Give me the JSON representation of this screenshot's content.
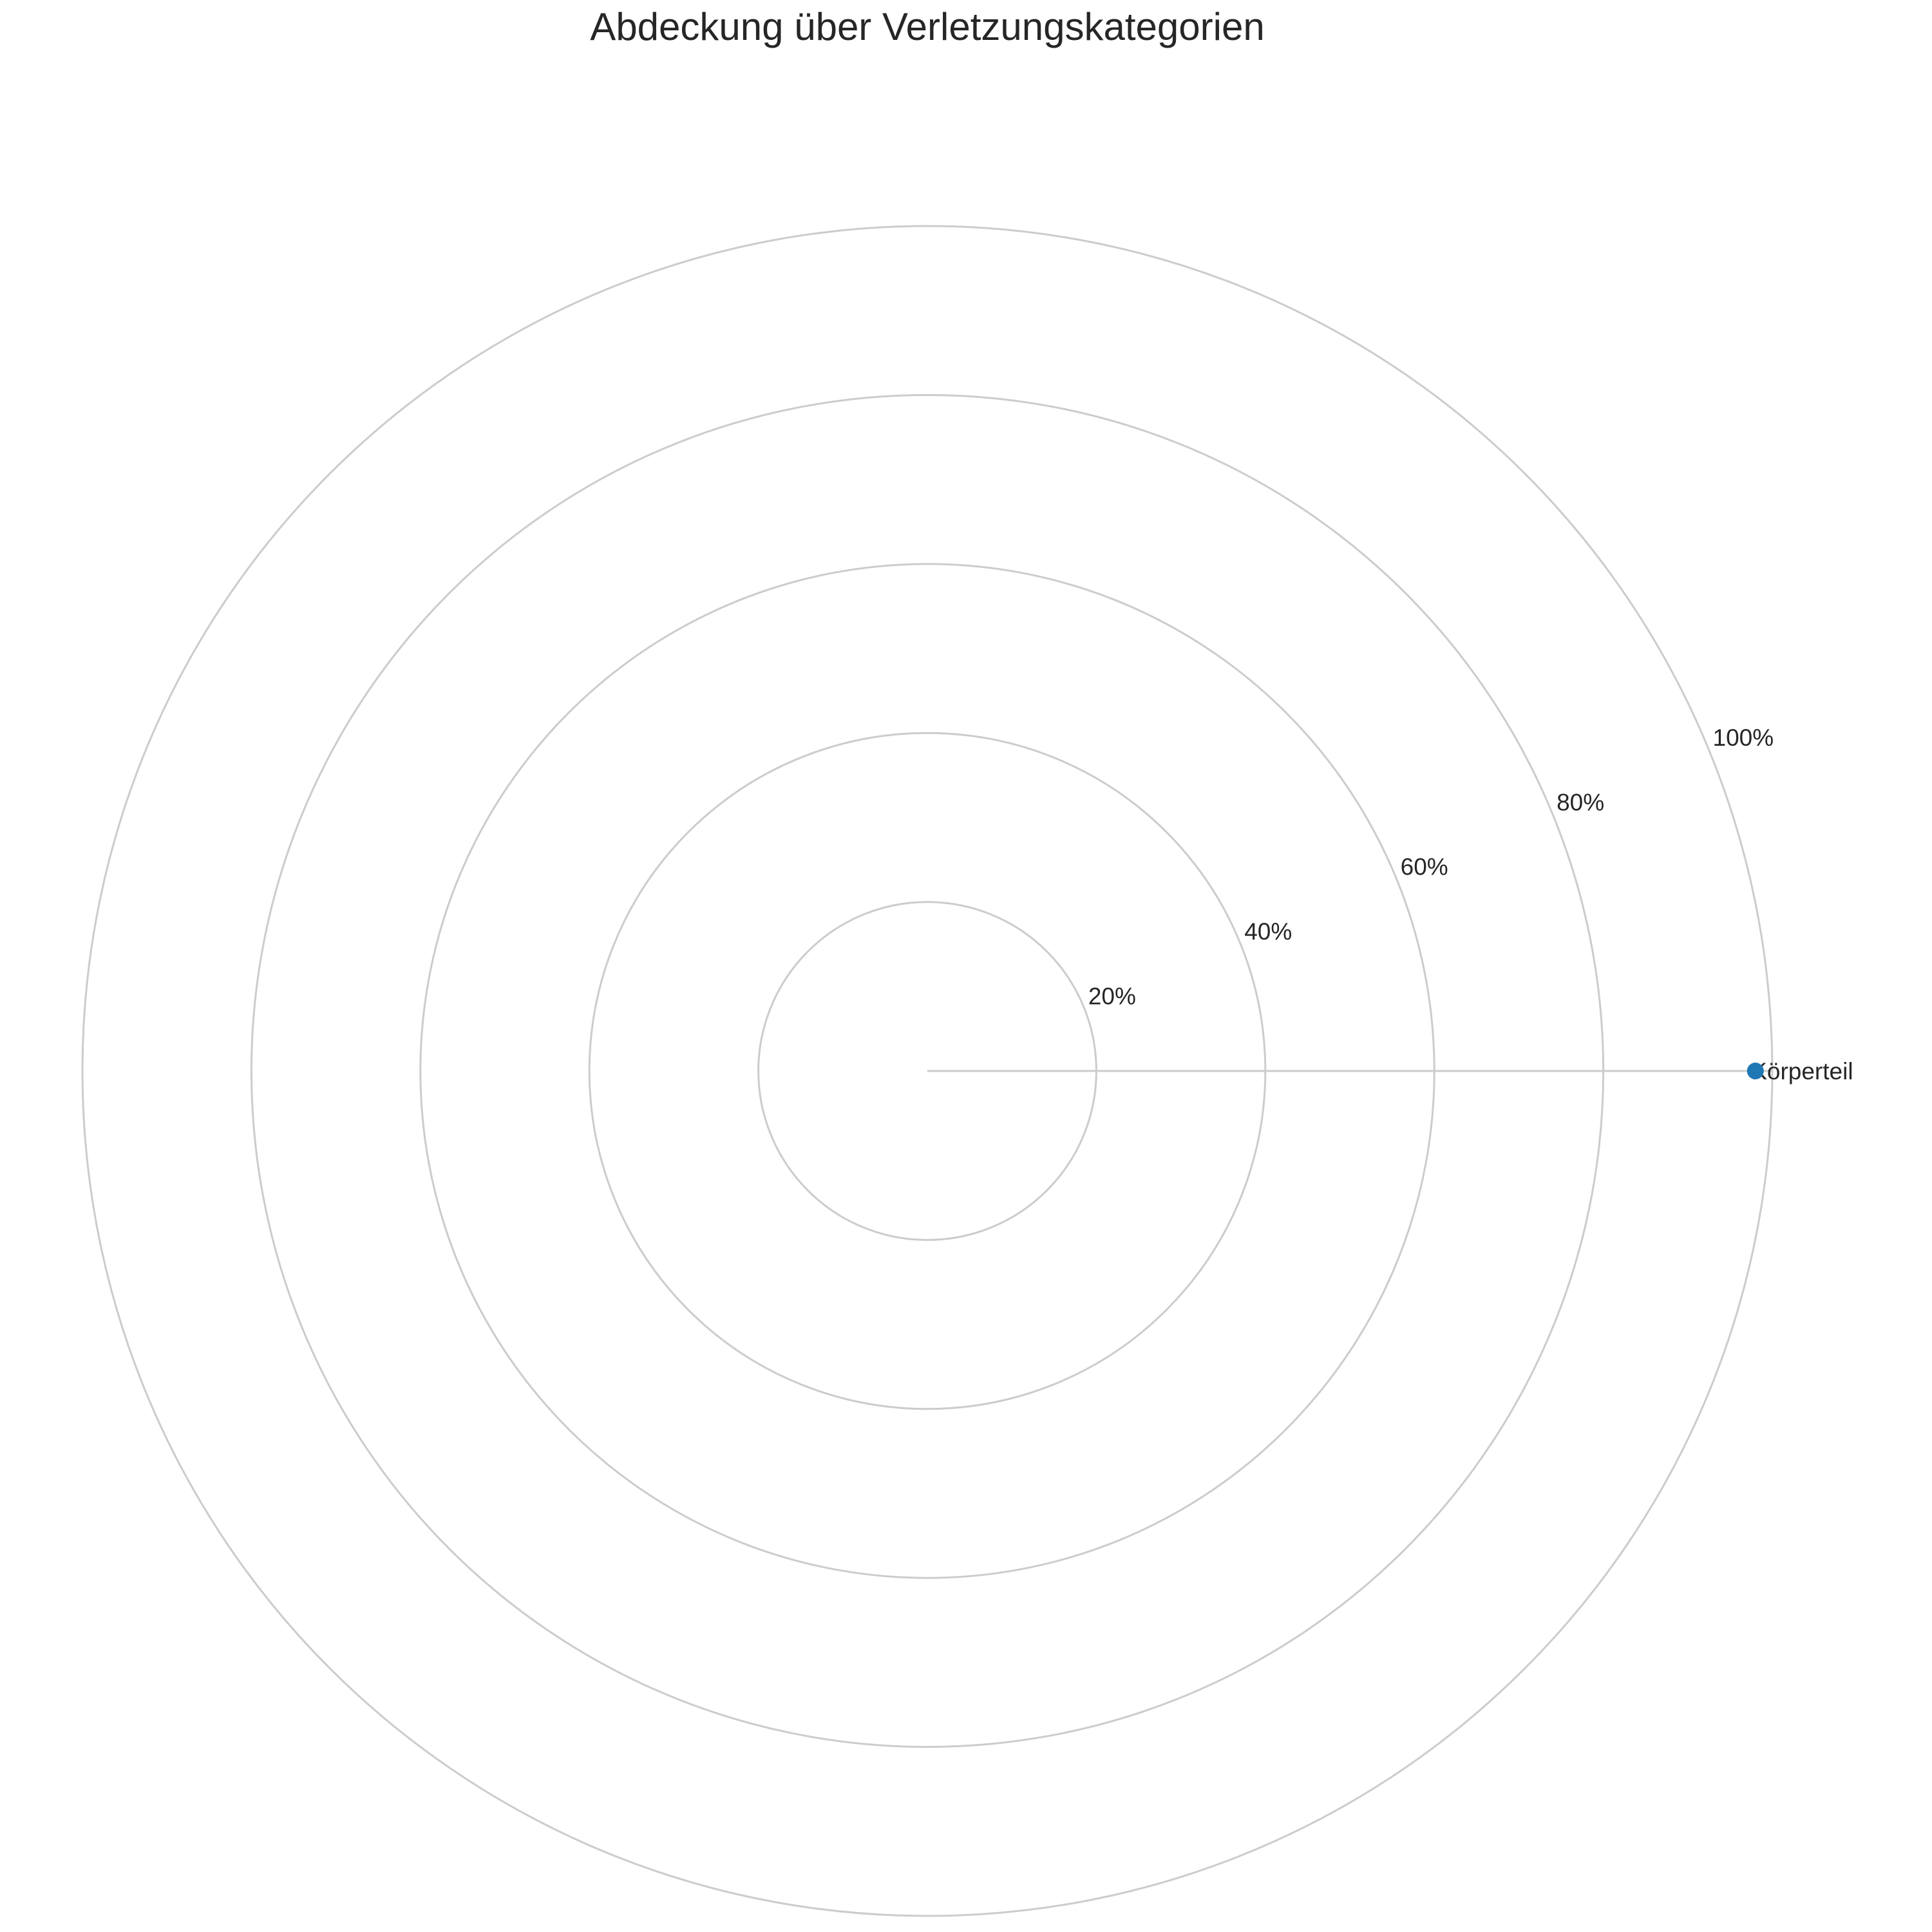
{
  "chart_data": {
    "type": "radar",
    "title": "Abdeckung über Verletzungskategorien",
    "categories": [
      "Körperteil"
    ],
    "series": [
      {
        "values": [
          98
        ],
        "color": "#1f77b4"
      }
    ],
    "rlim": [
      0,
      100
    ],
    "r_ticks": [
      20,
      40,
      60,
      80,
      100
    ],
    "r_tick_labels": [
      "20%",
      "40%",
      "60%",
      "80%",
      "100%"
    ],
    "grid": true,
    "legend": "none"
  }
}
